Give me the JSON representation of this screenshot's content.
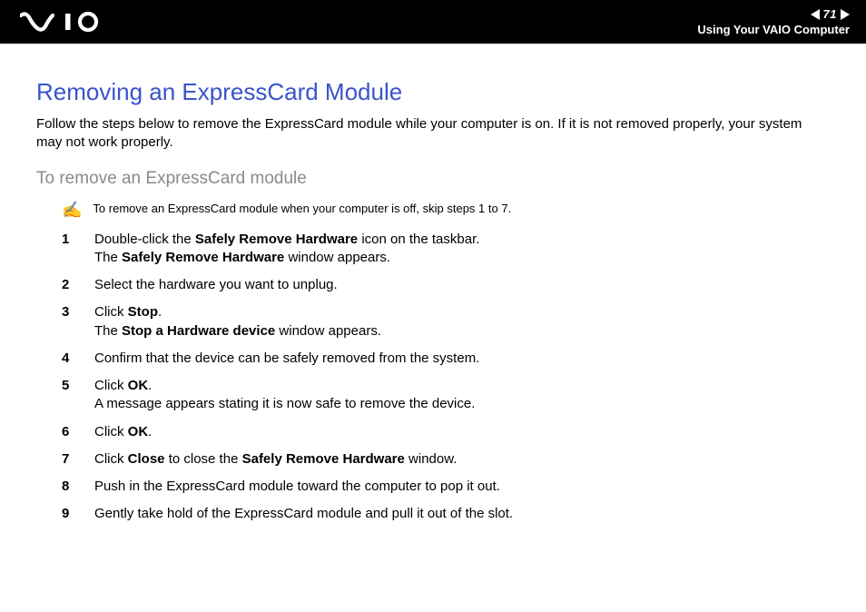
{
  "header": {
    "page_number": "71",
    "section_label": "Using Your VAIO Computer"
  },
  "content": {
    "title": "Removing an ExpressCard Module",
    "intro": "Follow the steps below to remove the ExpressCard module while your computer is on. If it is not removed properly, your system may not work properly.",
    "subtitle": "To remove an ExpressCard module",
    "note_icon": "✍",
    "note": "To remove an ExpressCard module when your computer is off, skip steps 1 to 7.",
    "steps": [
      {
        "n": "1",
        "parts": [
          "Double-click the ",
          {
            "b": "Safely Remove Hardware"
          },
          " icon on the taskbar.",
          {
            "br": true
          },
          "The ",
          {
            "b": "Safely Remove Hardware"
          },
          " window appears."
        ]
      },
      {
        "n": "2",
        "parts": [
          "Select the hardware you want to unplug."
        ]
      },
      {
        "n": "3",
        "parts": [
          "Click ",
          {
            "b": "Stop"
          },
          ".",
          {
            "br": true
          },
          "The ",
          {
            "b": "Stop a Hardware device"
          },
          " window appears."
        ]
      },
      {
        "n": "4",
        "parts": [
          "Confirm that the device can be safely removed from the system."
        ]
      },
      {
        "n": "5",
        "parts": [
          "Click ",
          {
            "b": "OK"
          },
          ".",
          {
            "br": true
          },
          "A message appears stating it is now safe to remove the device."
        ]
      },
      {
        "n": "6",
        "parts": [
          "Click ",
          {
            "b": "OK"
          },
          "."
        ]
      },
      {
        "n": "7",
        "parts": [
          "Click ",
          {
            "b": "Close"
          },
          " to close the ",
          {
            "b": "Safely Remove Hardware"
          },
          " window."
        ]
      },
      {
        "n": "8",
        "parts": [
          "Push in the ExpressCard module toward the computer to pop it out."
        ]
      },
      {
        "n": "9",
        "parts": [
          "Gently take hold of the ExpressCard module and pull it out of the slot."
        ]
      }
    ]
  },
  "colors": {
    "header_bg": "#000000",
    "header_fg": "#ffffff",
    "title": "#3a54c8",
    "subtitle": "#8a8a8a",
    "body": "#000000"
  }
}
